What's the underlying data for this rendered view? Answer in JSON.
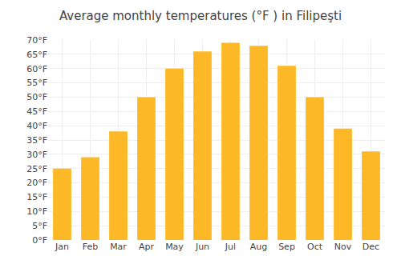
{
  "chart_data": {
    "type": "bar",
    "title": "Average monthly temperatures (°F ) in Filipeşti",
    "categories": [
      "Jan",
      "Feb",
      "Mar",
      "Apr",
      "May",
      "Jun",
      "Jul",
      "Aug",
      "Sep",
      "Oct",
      "Nov",
      "Dec"
    ],
    "values": [
      25,
      29,
      38,
      50,
      60,
      66,
      69,
      68,
      61,
      50,
      39,
      31
    ],
    "color": "#FDB827",
    "ylim": [
      0,
      70
    ],
    "yticks": [
      {
        "value": 0,
        "label": "0°F"
      },
      {
        "value": 5,
        "label": "5°F"
      },
      {
        "value": 10,
        "label": "10°F"
      },
      {
        "value": 15,
        "label": "15°F"
      },
      {
        "value": 20,
        "label": "20°F"
      },
      {
        "value": 25,
        "label": "25°F"
      },
      {
        "value": 30,
        "label": "30°F"
      },
      {
        "value": 35,
        "label": "35°F"
      },
      {
        "value": 40,
        "label": "40°F"
      },
      {
        "value": 45,
        "label": "45°F"
      },
      {
        "value": 50,
        "label": "50°F"
      },
      {
        "value": 55,
        "label": "55°F"
      },
      {
        "value": 60,
        "label": "60°F"
      },
      {
        "value": 65,
        "label": "65°F"
      },
      {
        "value": 70,
        "label": "70°F"
      }
    ],
    "grid": true
  }
}
